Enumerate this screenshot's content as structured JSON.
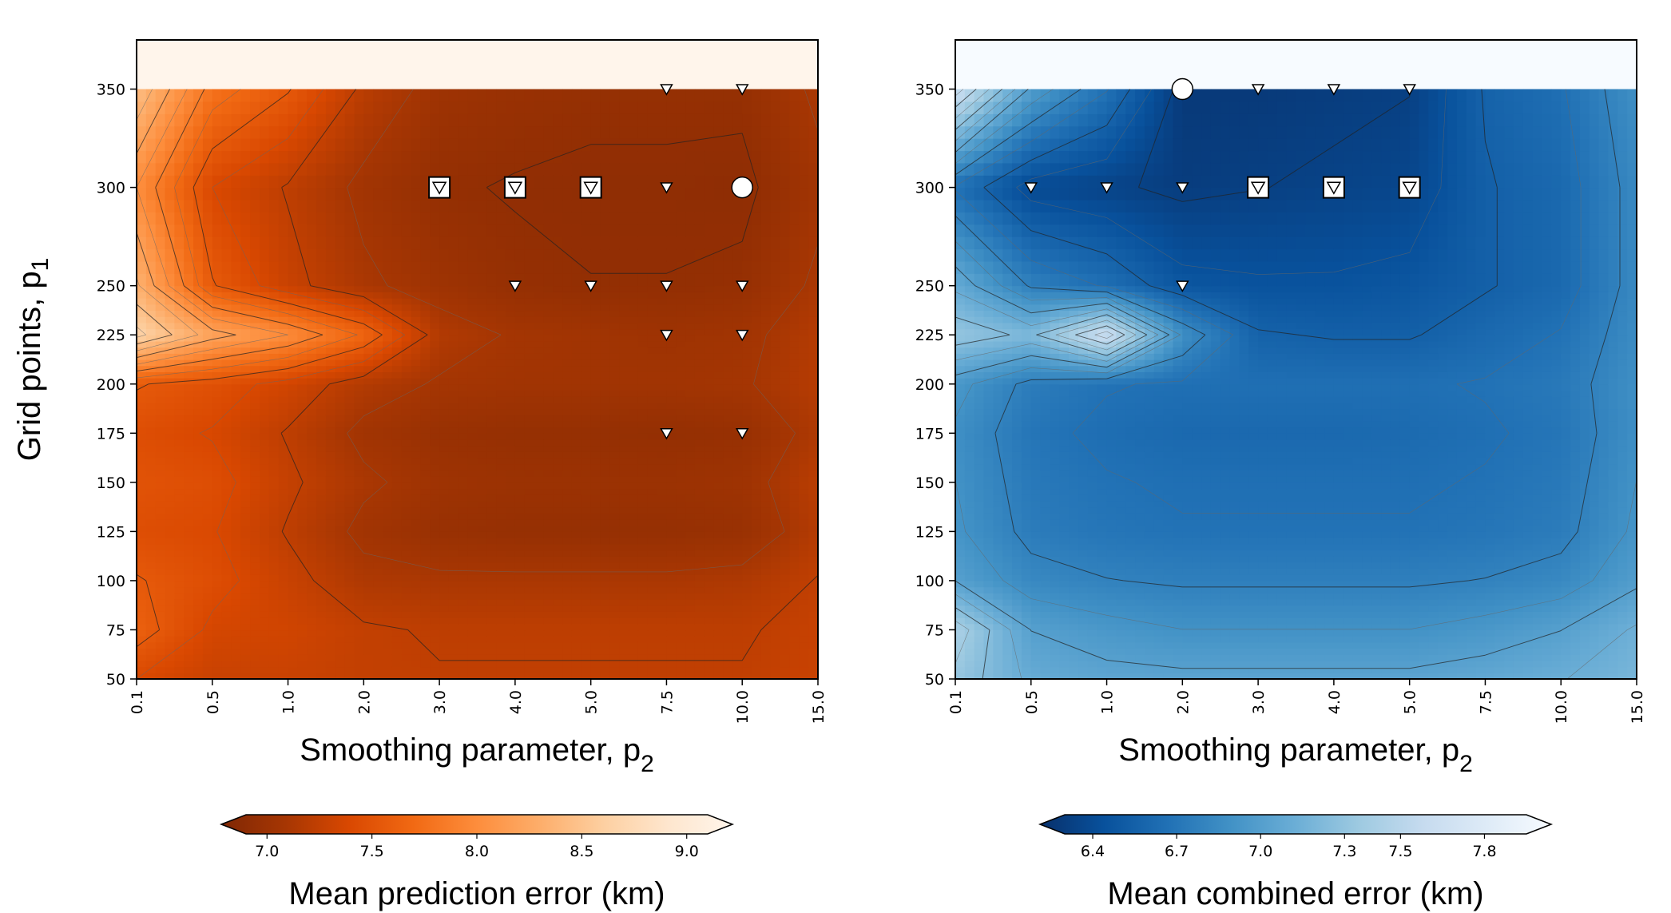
{
  "chart_data": [
    {
      "type": "heatmap",
      "title": "",
      "xlabel": "Smoothing parameter, p",
      "xlabel_sub": "2",
      "ylabel": "Grid points, p",
      "ylabel_sub": "1",
      "x_categories": [
        "0.1",
        "0.5",
        "1.0",
        "2.0",
        "3.0",
        "4.0",
        "5.0",
        "7.5",
        "10.0",
        "15.0"
      ],
      "y_ticks": [
        50,
        75,
        100,
        125,
        150,
        175,
        200,
        225,
        250,
        300,
        350
      ],
      "y_categories": [
        "50",
        "75",
        "100",
        "125",
        "150",
        "175",
        "200",
        "225",
        "250",
        "300",
        "350"
      ],
      "ylim": [
        50,
        375
      ],
      "colormap": "Oranges_r",
      "colorbar_label": "Mean prediction error (km)",
      "colorbar_ticks": [
        7.0,
        7.5,
        8.0,
        8.5,
        9.0
      ],
      "colorbar_tick_labels": [
        "7.0",
        "7.5",
        "8.0",
        "8.5",
        "9.0"
      ],
      "colorbar_range": [
        6.9,
        9.1
      ],
      "colorbar_extend": "both",
      "colorbar_stops": [
        "#7f2704",
        "#a63603",
        "#d94801",
        "#f16913",
        "#fd8d3c",
        "#fdae6b",
        "#fdd0a2",
        "#fee6ce",
        "#fff5eb"
      ],
      "z_rows": [
        [
          7.45,
          7.36,
          7.36,
          7.33,
          7.32,
          7.32,
          7.32,
          7.32,
          7.32,
          7.36
        ],
        [
          7.66,
          7.42,
          7.4,
          7.33,
          7.3,
          7.3,
          7.3,
          7.3,
          7.3,
          7.35
        ],
        [
          7.6,
          7.5,
          7.36,
          7.22,
          7.2,
          7.2,
          7.2,
          7.2,
          7.22,
          7.32
        ],
        [
          7.5,
          7.46,
          7.3,
          7.14,
          7.08,
          7.06,
          7.06,
          7.06,
          7.08,
          7.25
        ],
        [
          7.54,
          7.5,
          7.34,
          7.2,
          7.12,
          7.1,
          7.1,
          7.1,
          7.12,
          7.28
        ],
        [
          7.5,
          7.44,
          7.3,
          7.14,
          7.08,
          7.06,
          7.06,
          7.05,
          7.07,
          7.22
        ],
        [
          7.6,
          7.52,
          7.4,
          7.24,
          7.16,
          7.14,
          7.14,
          7.14,
          7.16,
          7.26
        ],
        [
          8.6,
          8.2,
          8.0,
          7.7,
          7.24,
          7.16,
          7.14,
          7.12,
          7.14,
          7.25
        ],
        [
          8.3,
          7.6,
          7.36,
          7.2,
          7.12,
          7.06,
          7.04,
          7.04,
          7.06,
          7.2
        ],
        [
          8.0,
          7.45,
          7.3,
          7.14,
          7.05,
          7.03,
          7.02,
          7.02,
          7.01,
          7.14
        ],
        [
          8.4,
          7.8,
          7.6,
          7.28,
          7.12,
          7.08,
          7.06,
          7.06,
          7.06,
          7.2
        ]
      ],
      "top_band_value": 9.1,
      "markers": {
        "triangle": [
          [
            "7.5",
            "350"
          ],
          [
            "10.0",
            "350"
          ],
          [
            "7.5",
            "300"
          ],
          [
            "4.0",
            "250"
          ],
          [
            "5.0",
            "250"
          ],
          [
            "7.5",
            "250"
          ],
          [
            "10.0",
            "250"
          ],
          [
            "7.5",
            "225"
          ],
          [
            "10.0",
            "225"
          ],
          [
            "7.5",
            "175"
          ],
          [
            "10.0",
            "175"
          ]
        ],
        "boxed_triangle": [
          [
            "3.0",
            "300"
          ],
          [
            "4.0",
            "300"
          ],
          [
            "5.0",
            "300"
          ]
        ],
        "circle": [
          [
            "10.0",
            "300"
          ]
        ]
      }
    },
    {
      "type": "heatmap",
      "title": "",
      "xlabel": "Smoothing parameter, p",
      "xlabel_sub": "2",
      "x_categories": [
        "0.1",
        "0.5",
        "1.0",
        "2.0",
        "3.0",
        "4.0",
        "5.0",
        "7.5",
        "10.0",
        "15.0"
      ],
      "y_ticks": [
        50,
        75,
        100,
        125,
        150,
        175,
        200,
        225,
        250,
        300,
        350
      ],
      "y_categories": [
        "50",
        "75",
        "100",
        "125",
        "150",
        "175",
        "200",
        "225",
        "250",
        "300",
        "350"
      ],
      "ylim": [
        50,
        375
      ],
      "colormap": "Blues_r",
      "colorbar_label": "Mean combined error (km)",
      "colorbar_ticks": [
        6.4,
        6.7,
        7.0,
        7.3,
        7.5,
        7.8
      ],
      "colorbar_tick_labels": [
        "6.4",
        "6.7",
        "7.0",
        "7.3",
        "7.5",
        "7.8"
      ],
      "colorbar_range": [
        6.3,
        7.95
      ],
      "colorbar_extend": "both",
      "colorbar_stops": [
        "#08306b",
        "#08519c",
        "#2171b5",
        "#4292c6",
        "#6baed6",
        "#9ecae1",
        "#c6dbef",
        "#deebf7",
        "#f7fbff"
      ],
      "z_rows": [
        [
          7.3,
          7.1,
          7.06,
          7.05,
          7.05,
          7.05,
          7.05,
          7.08,
          7.12,
          7.18
        ],
        [
          7.4,
          7.02,
          6.96,
          6.92,
          6.92,
          6.92,
          6.92,
          6.96,
          7.02,
          7.14
        ],
        [
          7.02,
          6.86,
          6.82,
          6.8,
          6.8,
          6.8,
          6.8,
          6.82,
          6.86,
          7.0
        ],
        [
          6.94,
          6.78,
          6.74,
          6.72,
          6.72,
          6.72,
          6.72,
          6.74,
          6.78,
          6.94
        ],
        [
          6.92,
          6.76,
          6.72,
          6.7,
          6.7,
          6.7,
          6.7,
          6.72,
          6.76,
          6.92
        ],
        [
          6.9,
          6.74,
          6.69,
          6.66,
          6.66,
          6.66,
          6.67,
          6.7,
          6.74,
          6.9
        ],
        [
          6.96,
          6.78,
          6.72,
          6.7,
          6.7,
          6.7,
          6.7,
          6.72,
          6.76,
          6.9
        ],
        [
          7.3,
          7.2,
          7.6,
          6.9,
          6.62,
          6.6,
          6.6,
          6.66,
          6.72,
          6.88
        ],
        [
          7.1,
          6.8,
          6.7,
          6.54,
          6.52,
          6.52,
          6.54,
          6.6,
          6.66,
          6.86
        ],
        [
          6.7,
          6.46,
          6.42,
          6.38,
          6.4,
          6.42,
          6.44,
          6.6,
          6.66,
          6.86
        ],
        [
          7.6,
          7.0,
          6.72,
          6.36,
          6.36,
          6.38,
          6.4,
          6.62,
          6.7,
          6.9
        ]
      ],
      "top_band_value": 8.0,
      "markers": {
        "triangle": [
          [
            "3.0",
            "350"
          ],
          [
            "4.0",
            "350"
          ],
          [
            "5.0",
            "350"
          ],
          [
            "0.5",
            "300"
          ],
          [
            "1.0",
            "300"
          ],
          [
            "2.0",
            "300"
          ],
          [
            "2.0",
            "250"
          ]
        ],
        "boxed_triangle": [
          [
            "3.0",
            "300"
          ],
          [
            "4.0",
            "300"
          ],
          [
            "5.0",
            "300"
          ]
        ],
        "circle": [
          [
            "2.0",
            "350"
          ]
        ]
      }
    }
  ]
}
